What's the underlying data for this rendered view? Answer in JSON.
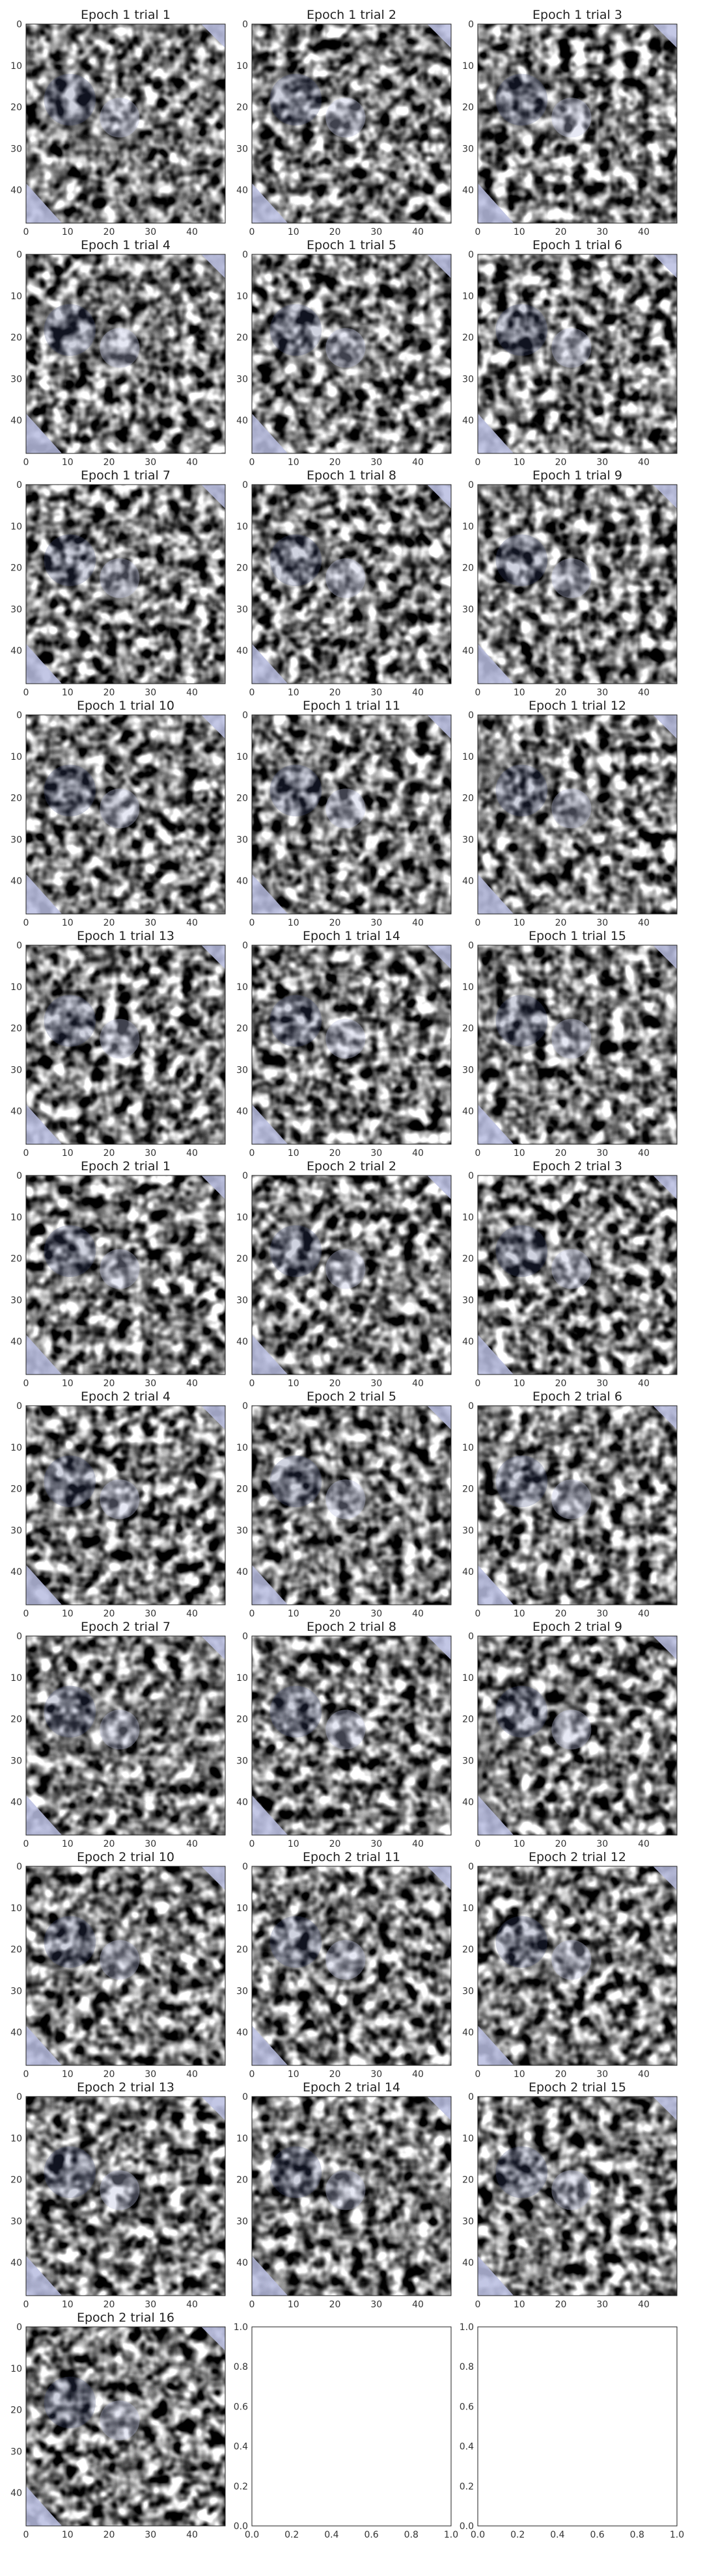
{
  "chart_data": {
    "type": "heatmap",
    "colormap": "gray",
    "overlay_color": "#b8bde0",
    "image_panels": [
      {
        "title": "Epoch 1 trial 1"
      },
      {
        "title": "Epoch 1 trial 2"
      },
      {
        "title": "Epoch 1 trial 3"
      },
      {
        "title": "Epoch 1 trial 4"
      },
      {
        "title": "Epoch 1 trial 5"
      },
      {
        "title": "Epoch 1 trial 6"
      },
      {
        "title": "Epoch 1 trial 7"
      },
      {
        "title": "Epoch 1 trial 8"
      },
      {
        "title": "Epoch 1 trial 9"
      },
      {
        "title": "Epoch 1 trial 10"
      },
      {
        "title": "Epoch 1 trial 11"
      },
      {
        "title": "Epoch 1 trial 12"
      },
      {
        "title": "Epoch 1 trial 13"
      },
      {
        "title": "Epoch 1 trial 14"
      },
      {
        "title": "Epoch 1 trial 15"
      },
      {
        "title": "Epoch 2 trial 1"
      },
      {
        "title": "Epoch 2 trial 2"
      },
      {
        "title": "Epoch 2 trial 3"
      },
      {
        "title": "Epoch 2 trial 4"
      },
      {
        "title": "Epoch 2 trial 5"
      },
      {
        "title": "Epoch 2 trial 6"
      },
      {
        "title": "Epoch 2 trial 7"
      },
      {
        "title": "Epoch 2 trial 8"
      },
      {
        "title": "Epoch 2 trial 9"
      },
      {
        "title": "Epoch 2 trial 10"
      },
      {
        "title": "Epoch 2 trial 11"
      },
      {
        "title": "Epoch 2 trial 12"
      },
      {
        "title": "Epoch 2 trial 13"
      },
      {
        "title": "Epoch 2 trial 14"
      },
      {
        "title": "Epoch 2 trial 15"
      },
      {
        "title": "Epoch 2 trial 16"
      }
    ],
    "image_axes": {
      "xlim": [
        0,
        48
      ],
      "ylim": [
        48,
        0
      ],
      "x_ticks": [
        "0",
        "10",
        "20",
        "30",
        "40"
      ],
      "y_ticks": [
        "0",
        "10",
        "20",
        "30",
        "40"
      ]
    },
    "empty_panel_count": 2,
    "empty_axes": {
      "xlim": [
        0,
        1
      ],
      "ylim": [
        0,
        1
      ],
      "x_ticks": [
        "0.0",
        "0.2",
        "0.4",
        "0.6",
        "0.8",
        "1.0"
      ],
      "y_ticks": [
        "0.0",
        "0.2",
        "0.4",
        "0.6",
        "0.8",
        "1.0"
      ]
    },
    "grid": false,
    "legend": "none"
  }
}
